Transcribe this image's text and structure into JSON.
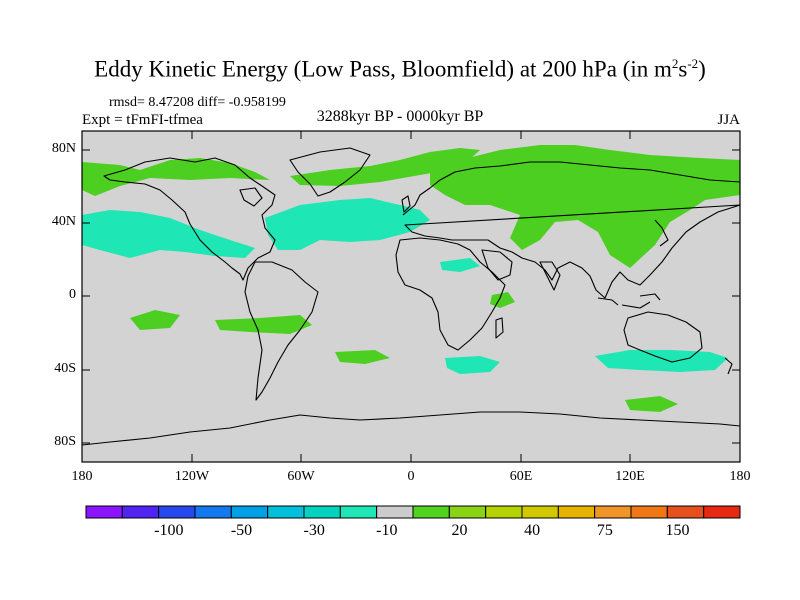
{
  "title": {
    "main": "Eddy Kinetic Energy (Low Pass, Bloomfield) at 200 hPa (in m",
    "sup1": "2",
    "mid": "s",
    "sup2": "-2",
    "close": ")"
  },
  "stats": "rmsd= 8.47208 diff= -0.958199",
  "experiment": "Expt = tFmFI-tfmea",
  "period": "3288kyr BP - 0000kyr BP",
  "season": "JJA",
  "map": {
    "projection": "cylindrical equidistant",
    "lon_range": [
      -180,
      180
    ],
    "lat_range": [
      -90,
      90
    ],
    "lat_labels": [
      "80N",
      "40N",
      "0",
      "40S",
      "80S"
    ],
    "lon_labels": [
      "180",
      "120W",
      "60W",
      "0",
      "60E",
      "120E",
      "180"
    ],
    "background_color": "#d3d3d3",
    "coastline_color": "#000000",
    "features": [
      "positive anomaly band over northern Eurasia and arctic",
      "negative anomaly band across north Atlantic and north Pacific mid-latitudes",
      "negative anomaly band south of Australia",
      "positive anomaly patches in southern ocean"
    ]
  },
  "colorbar": {
    "labels": [
      "-100",
      "-50",
      "-30",
      "-10",
      "20",
      "40",
      "75",
      "150"
    ],
    "colors": [
      "#8a14ff",
      "#5024f2",
      "#2848ee",
      "#1478ee",
      "#00a0e6",
      "#00c0dc",
      "#00d4c0",
      "#1ee6b4",
      "#cccccc",
      "#50d21e",
      "#8cd214",
      "#b4d200",
      "#d2c800",
      "#e6b400",
      "#f09628",
      "#f07814",
      "#e6501e",
      "#e62814"
    ]
  }
}
